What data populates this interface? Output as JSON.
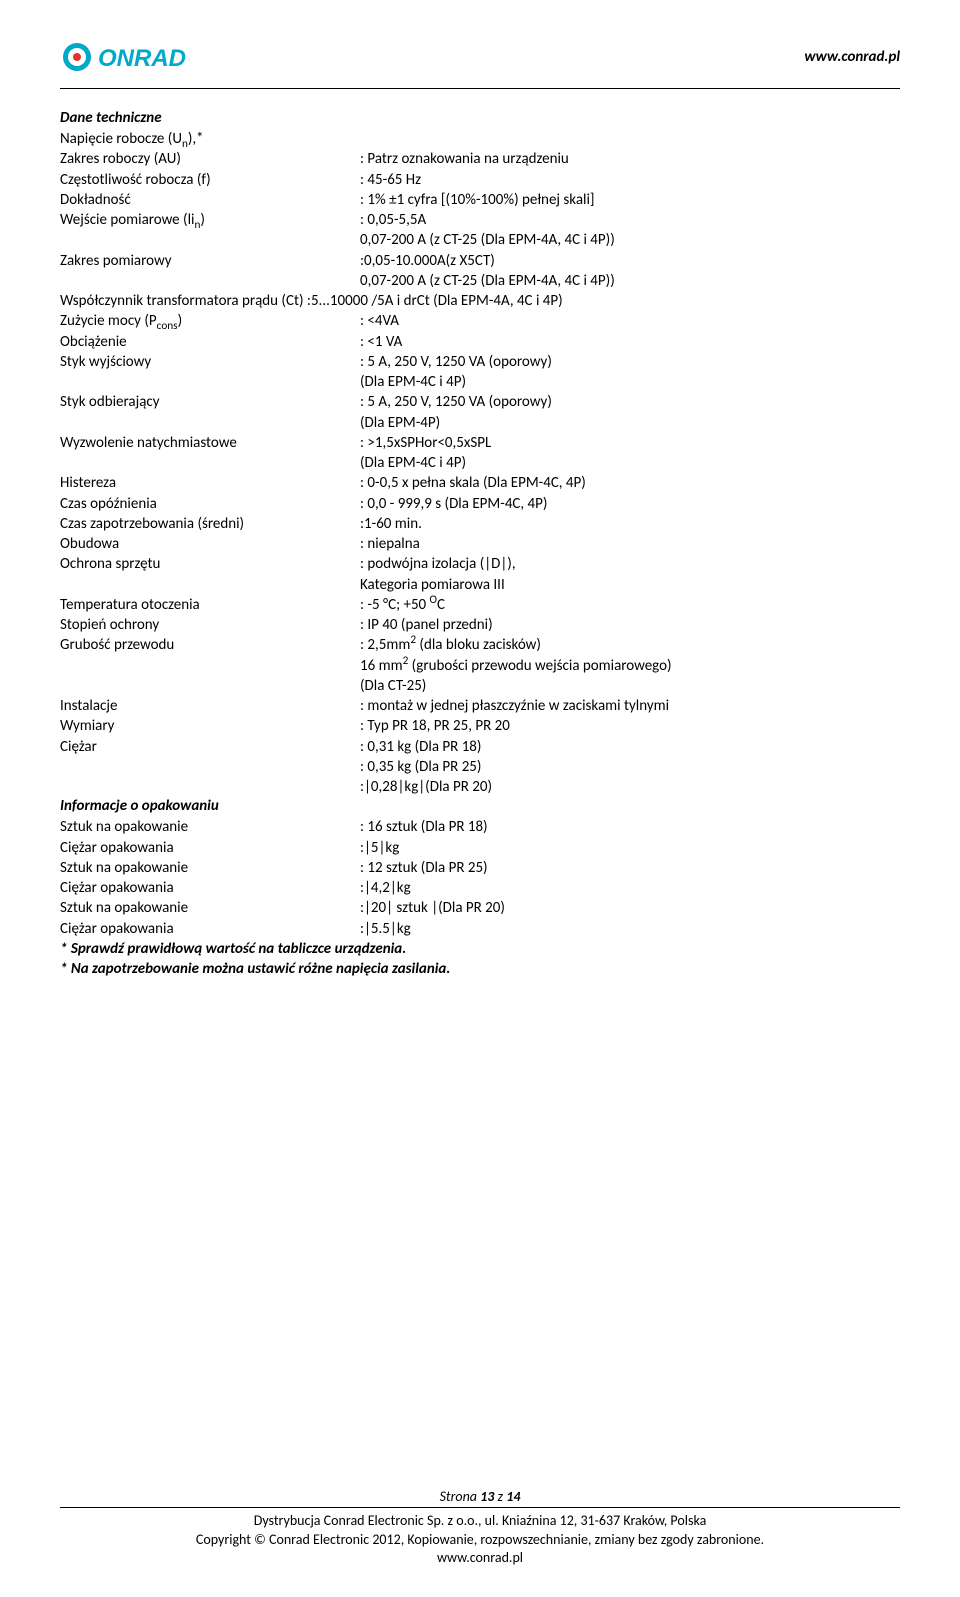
{
  "header": {
    "url": "www.conrad.pl",
    "logo_colors": {
      "cyan": "#00a9c7",
      "red": "#e63329"
    }
  },
  "title": "Dane techniczne",
  "specs": [
    {
      "label": "Napięcie robocze  (Uₙ),*",
      "value": ""
    },
    {
      "label": "Zakres roboczy (AU)",
      "value": ": Patrz oznakowania na urządzeniu"
    },
    {
      "label": "Częstotliwość robocza  (f)",
      "value": ": 45-65 Hz"
    },
    {
      "label": "Dokładność",
      "value": ": 1% ±1 cyfra  [(10%-100%) pełnej skali]"
    },
    {
      "label": "Wejście pomiarowe  (liₙ)",
      "value": ": 0,05-5,5A",
      "sub": [
        "0,07-200 A (z CT-25 (Dla EPM-4A, 4C i 4P))"
      ]
    },
    {
      "label": "Zakres pomiarowy",
      "value": ":0,05-10.000A(z X5CT)",
      "sub": [
        "0,07-200 A (z CT-25 (Dla EPM-4A, 4C i 4P))"
      ]
    },
    {
      "label": "Współczynnik transformatora prądu (Ct) :5...10000 /5A i drCt (Dla EPM-4A, 4C  i 4P)",
      "value": "",
      "full": true
    },
    {
      "label": "Zużycie mocy (P_cons)",
      "value": ": <4VA",
      "raw_label": true
    },
    {
      "label": "Obciążenie",
      "value": ": <1 VA"
    },
    {
      "label": "Styk wyjściowy",
      "value": ": 5 A, 250 V, 1250 VA (oporowy)",
      "sub": [
        "(Dla EPM-4C i 4P)"
      ]
    },
    {
      "label": "Styk odbierający",
      "value": ": 5 A, 250 V, 1250 VA (oporowy)",
      "sub": [
        "(Dla EPM-4P)"
      ]
    },
    {
      "label": "Wyzwolenie natychmiastowe",
      "value": ": >1,5xSPHor<0,5xSPL",
      "sub": [
        "(Dla EPM-4C i 4P)"
      ]
    },
    {
      "label": "Histereza",
      "value": ": 0-0,5 x pełna skala  (Dla EPM-4C, 4P)"
    },
    {
      "label": "Czas opóźnienia",
      "value": ": 0,0 - 999,9 s (Dla EPM-4C, 4P)"
    },
    {
      "label": "Czas zapotrzebowania (średni)",
      "value": ":1-60 min."
    },
    {
      "label": "Obudowa",
      "value": ": niepalna"
    },
    {
      "label": "Ochrona sprzętu",
      "value": ": podwójna izolacja (|D|),",
      "sub": [
        "Kategoria pomiarowa III"
      ]
    },
    {
      "label": "Temperatura otoczenia",
      "value": ": -5 °C; +50 ᴼC"
    },
    {
      "label": "Stopień ochrony",
      "value": ": IP 40 (panel przedni)"
    },
    {
      "label": "Grubość przewodu",
      "value": ": 2,5mm² (dla bloku zacisków)",
      "sub": [
        "16 mm² (grubości przewodu wejścia pomiarowego)",
        "(Dla  CT-25)"
      ]
    },
    {
      "label": "Instalacje",
      "value": ": montaż w jednej płaszczyźnie w zaciskami tylnymi"
    },
    {
      "label": "Wymiary",
      "value": ": Typ PR 18, PR 25, PR 20"
    },
    {
      "label": "Ciężar",
      "value": ": 0,31 kg (Dla PR 18)",
      "sub": [
        ": 0,35 kg (Dla PR 25)",
        ":|0,28|kg|(Dla PR 20)"
      ]
    }
  ],
  "packaging_title": "Informacje o opakowaniu",
  "packaging": [
    {
      "label": "Sztuk  na opakowanie",
      "value": ": 16 sztuk  (Dla PR 18)"
    },
    {
      "label": "Ciężar opakowania",
      "value": ":|5|kg"
    },
    {
      "label": "Sztuk  na opakowanie",
      "value": ": 12 sztuk  (Dla PR 25)"
    },
    {
      "label": "Ciężar opakowania",
      "value": ":|4,2|kg"
    },
    {
      "label": "Sztuk  na opakowanie",
      "value": ":|20| sztuk |(Dla PR 20)"
    },
    {
      "label": "Ciężar opakowania",
      "value": ":|5.5|kg"
    }
  ],
  "notes": [
    "* Sprawdź prawidłową wartość na tabliczce urządzenia.",
    "* Na zapotrzebowanie można ustawić różne napięcia zasilania."
  ],
  "footer": {
    "page": "Strona 13 z 14",
    "line1": "Dystrybucja Conrad Electronic Sp. z o.o., ul. Kniaźnina 12, 31-637 Kraków, Polska",
    "line2": "Copyright © Conrad Electronic 2012, Kopiowanie, rozpowszechnianie, zmiany bez zgody zabronione.",
    "line3": "www.conrad.pl"
  }
}
